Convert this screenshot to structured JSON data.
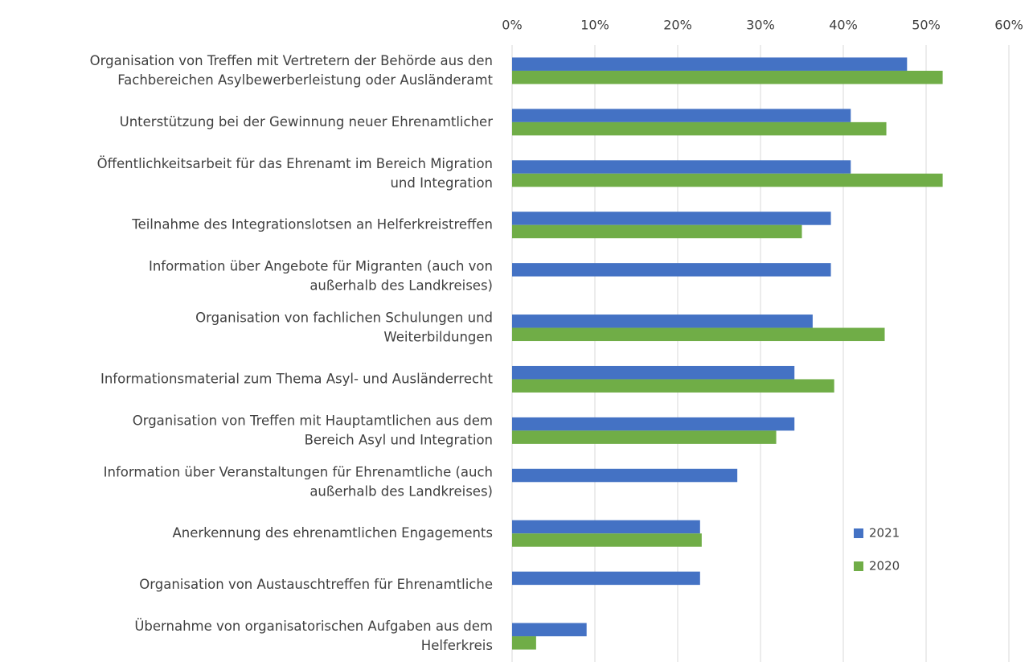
{
  "chart_data": {
    "type": "bar",
    "orientation": "horizontal",
    "categories": [
      [
        "Organisation von Treffen mit Vertretern der Behörde aus den",
        "Fachbereichen Asylbewerberleistung oder Ausländeramt"
      ],
      [
        "Unterstützung bei der Gewinnung neuer Ehrenamtlicher"
      ],
      [
        "Öffentlichkeitsarbeit für das Ehrenamt im Bereich Migration",
        "und Integration"
      ],
      [
        "Teilnahme des Integrationslotsen an Helferkreistreffen"
      ],
      [
        "Information über Angebote für Migranten (auch von",
        "außerhalb des Landkreises)"
      ],
      [
        "Organisation von fachlichen Schulungen und",
        "Weiterbildungen"
      ],
      [
        "Informationsmaterial zum Thema Asyl- und Ausländerrecht"
      ],
      [
        "Organisation von Treffen mit Hauptamtlichen aus dem",
        "Bereich Asyl und Integration"
      ],
      [
        "Information über Veranstaltungen für Ehrenamtliche (auch",
        "außerhalb des Landkreises)"
      ],
      [
        "Anerkennung des ehrenamtlichen Engagements"
      ],
      [
        "Organisation von Austauschtreffen für Ehrenamtliche"
      ],
      [
        "Übernahme von organisatorischen Aufgaben aus dem",
        "Helferkreis"
      ]
    ],
    "series": [
      {
        "name": "2021",
        "color": "#4472c4",
        "values": [
          47.7,
          40.9,
          40.9,
          38.5,
          38.5,
          36.3,
          34.1,
          34.1,
          27.2,
          22.7,
          22.7,
          9.0
        ]
      },
      {
        "name": "2020",
        "color": "#70ad47",
        "values": [
          52.0,
          45.2,
          52.0,
          35.0,
          null,
          45.0,
          38.9,
          31.9,
          null,
          22.9,
          null,
          2.9
        ]
      }
    ],
    "xlim": [
      0,
      60
    ],
    "xticks": [
      {
        "value": 0,
        "label": "0%"
      },
      {
        "value": 10,
        "label": "10%"
      },
      {
        "value": 20,
        "label": "20%"
      },
      {
        "value": 30,
        "label": "30%"
      },
      {
        "value": 40,
        "label": "40%"
      },
      {
        "value": 50,
        "label": "50%"
      },
      {
        "value": 60,
        "label": "60%"
      }
    ],
    "grid": true,
    "legend": "right"
  }
}
